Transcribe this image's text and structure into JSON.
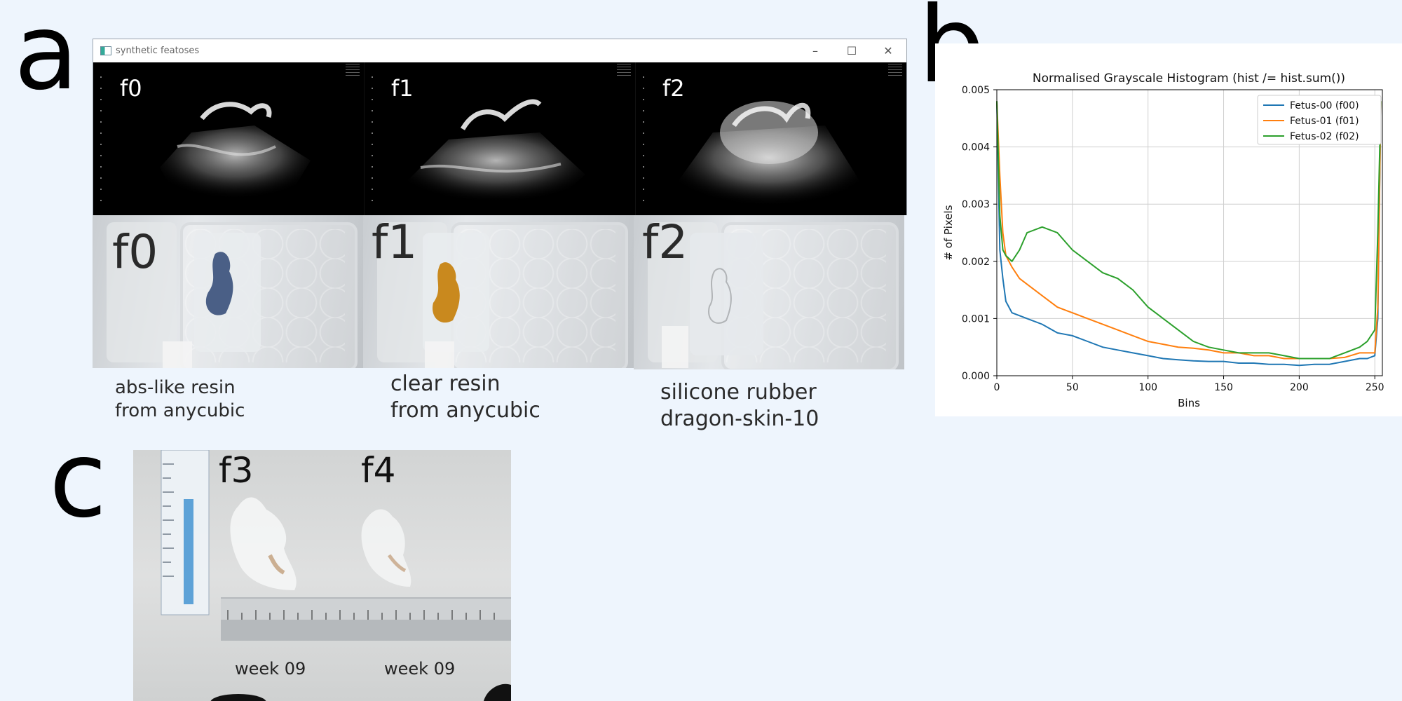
{
  "panels": {
    "a": "a",
    "b": "b",
    "c": "c"
  },
  "window": {
    "title": "synthetic featoses",
    "controls": [
      "minimize-icon",
      "maximize-icon",
      "close-icon"
    ],
    "ultrasound_labels": [
      "f0",
      "f1",
      "f2"
    ]
  },
  "photos": {
    "labels": [
      "f0",
      "f1",
      "f2"
    ],
    "fetus_colors": [
      "#4a5f86",
      "#c9891e",
      "#b9bcbf"
    ]
  },
  "captions": [
    {
      "line1": "abs-like resin",
      "line2": "from anycubic"
    },
    {
      "line1": "clear resin",
      "line2": "from anycubic"
    },
    {
      "line1": "silicone rubber",
      "line2": "dragon-skin-10"
    }
  ],
  "chart_data": {
    "type": "line",
    "title": "Normalised Grayscale Histogram (hist /= hist.sum())",
    "xlabel": "Bins",
    "ylabel": "# of Pixels",
    "xlim": [
      0,
      255
    ],
    "ylim": [
      0,
      0.005
    ],
    "xticks": [
      "0",
      "50",
      "100",
      "150",
      "200",
      "250"
    ],
    "yticks": [
      "0.000",
      "0.001",
      "0.002",
      "0.003",
      "0.004",
      "0.005"
    ],
    "grid": true,
    "legend_position": "top-right",
    "x": [
      0,
      2,
      4,
      6,
      10,
      15,
      20,
      30,
      40,
      50,
      60,
      70,
      80,
      90,
      100,
      110,
      120,
      130,
      140,
      150,
      160,
      170,
      180,
      190,
      200,
      210,
      220,
      230,
      240,
      245,
      250,
      252,
      254
    ],
    "series": [
      {
        "name": "Fetus-00 (f00)",
        "color": "#1f77b4",
        "values": [
          0.0048,
          0.0022,
          0.0017,
          0.0013,
          0.0011,
          0.00105,
          0.001,
          0.0009,
          0.00075,
          0.0007,
          0.0006,
          0.0005,
          0.00045,
          0.0004,
          0.00035,
          0.0003,
          0.00028,
          0.00026,
          0.00025,
          0.00025,
          0.00022,
          0.00022,
          0.0002,
          0.0002,
          0.00018,
          0.0002,
          0.0002,
          0.00025,
          0.0003,
          0.0003,
          0.00035,
          0.001,
          0.0048
        ]
      },
      {
        "name": "Fetus-01 (f01)",
        "color": "#ff7f0e",
        "values": [
          0.0048,
          0.0035,
          0.0025,
          0.0021,
          0.0019,
          0.0017,
          0.0016,
          0.0014,
          0.0012,
          0.0011,
          0.001,
          0.0009,
          0.0008,
          0.0007,
          0.0006,
          0.00055,
          0.0005,
          0.00048,
          0.00045,
          0.0004,
          0.0004,
          0.00035,
          0.00035,
          0.0003,
          0.0003,
          0.0003,
          0.0003,
          0.00032,
          0.0004,
          0.0004,
          0.0004,
          0.0012,
          0.0048
        ]
      },
      {
        "name": "Fetus-02 (f02)",
        "color": "#2ca02c",
        "values": [
          0.0048,
          0.0028,
          0.0022,
          0.0021,
          0.002,
          0.0022,
          0.0025,
          0.0026,
          0.0025,
          0.0022,
          0.002,
          0.0018,
          0.0017,
          0.0015,
          0.0012,
          0.001,
          0.0008,
          0.0006,
          0.0005,
          0.00045,
          0.0004,
          0.0004,
          0.0004,
          0.00035,
          0.0003,
          0.0003,
          0.0003,
          0.0004,
          0.0005,
          0.0006,
          0.0008,
          0.0025,
          0.0048
        ]
      }
    ]
  },
  "panel_c": {
    "labels": [
      "f3",
      "f4"
    ],
    "weeks": [
      "week 09",
      "week  09"
    ]
  }
}
